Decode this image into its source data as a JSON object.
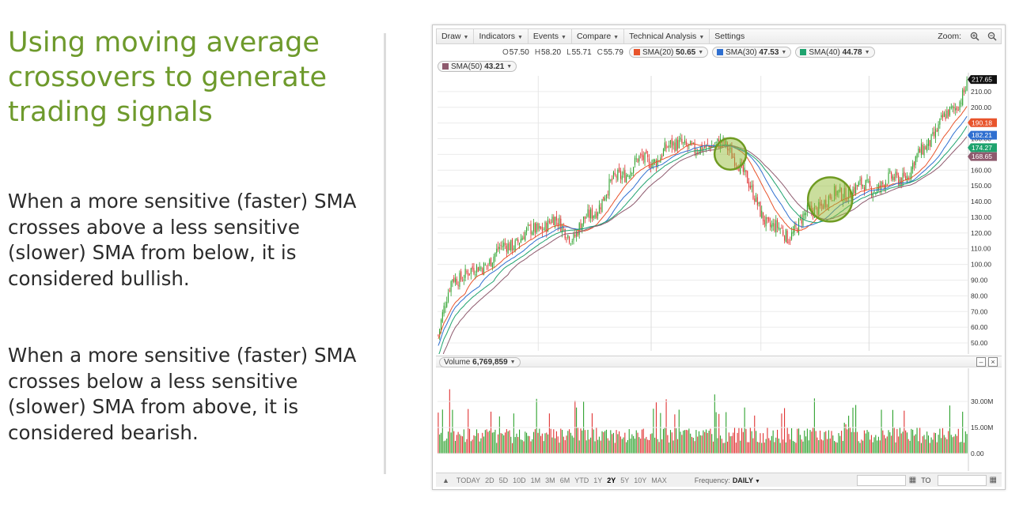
{
  "slide": {
    "title": "Using moving average crossovers to generate trading signals",
    "paragraph_bullish": "When a more sensitive (faster) SMA crosses above a less sensitive (slower) SMA from below, it is considered bullish.",
    "paragraph_bearish": "When a more sensitive (faster) SMA crosses below a less sensitive (slower) SMA from above, it is considered bearish."
  },
  "chart": {
    "toolbar": {
      "items": [
        "Draw",
        "Indicators",
        "Events",
        "Compare",
        "Technical Analysis",
        "Settings"
      ],
      "zoom_label": "Zoom:"
    },
    "quote": {
      "open": {
        "label": "O",
        "value": "57.50"
      },
      "high": {
        "label": "H",
        "value": "58.20"
      },
      "low": {
        "label": "L",
        "value": "55.71"
      },
      "close": {
        "label": "C",
        "value": "55.79"
      }
    },
    "smas": [
      {
        "label": "SMA(20)",
        "value": "50.65",
        "color": "#e8542c"
      },
      {
        "label": "SMA(30)",
        "value": "47.53",
        "color": "#2f6fd0"
      },
      {
        "label": "SMA(40)",
        "value": "44.78",
        "color": "#1fa36e"
      },
      {
        "label": "SMA(50)",
        "value": "43.21",
        "color": "#8e5a6e"
      }
    ],
    "volume": {
      "label": "Volume",
      "value": "6,769,859"
    },
    "bottom_bar": {
      "ranges": [
        "TODAY",
        "2D",
        "5D",
        "10D",
        "1M",
        "3M",
        "6M",
        "YTD",
        "1Y",
        "2Y",
        "5Y",
        "10Y",
        "MAX"
      ],
      "active_range": "2Y",
      "frequency_label": "Frequency:",
      "frequency_value": "DAILY",
      "to_label": "TO"
    },
    "window_buttons": {
      "minimize": "–",
      "close": "×"
    }
  },
  "chart_data": {
    "type": "candlestick",
    "y_axis_ticks": [
      "210.00",
      "200.00",
      "190.00",
      "180.00",
      "170.00",
      "160.00",
      "150.00",
      "140.00",
      "130.00",
      "120.00",
      "110.00",
      "100.00",
      "90.00",
      "80.00",
      "70.00",
      "60.00",
      "50.00"
    ],
    "y_range": [
      45,
      220
    ],
    "last_price_tags": [
      {
        "value": "217.65",
        "color": "#111111"
      },
      {
        "value": "190.18",
        "color": "#e8542c"
      },
      {
        "value": "182.21",
        "color": "#2f6fd0"
      },
      {
        "value": "174.27",
        "color": "#1fa36e"
      },
      {
        "value": "168.65",
        "color": "#8e5a6e"
      }
    ],
    "close_anchors": [
      [
        0,
        55
      ],
      [
        10,
        92
      ],
      [
        25,
        95
      ],
      [
        45,
        110
      ],
      [
        60,
        118
      ],
      [
        80,
        128
      ],
      [
        95,
        118
      ],
      [
        110,
        135
      ],
      [
        125,
        155
      ],
      [
        140,
        165
      ],
      [
        155,
        168
      ],
      [
        170,
        180
      ],
      [
        180,
        170
      ],
      [
        190,
        178
      ],
      [
        200,
        175
      ],
      [
        210,
        168
      ],
      [
        220,
        145
      ],
      [
        232,
        125
      ],
      [
        245,
        118
      ],
      [
        255,
        128
      ],
      [
        270,
        140
      ],
      [
        290,
        148
      ],
      [
        310,
        150
      ],
      [
        330,
        158
      ],
      [
        345,
        180
      ],
      [
        362,
        200
      ],
      [
        372,
        215
      ]
    ],
    "bearish_cross_index": 205,
    "bullish_cross_index": 275,
    "volume_axis_ticks": [
      "30.00M",
      "15.00M",
      "0.00"
    ],
    "volume_range": [
      0,
      40
    ],
    "volume_units": "M",
    "bar_count": 372
  }
}
